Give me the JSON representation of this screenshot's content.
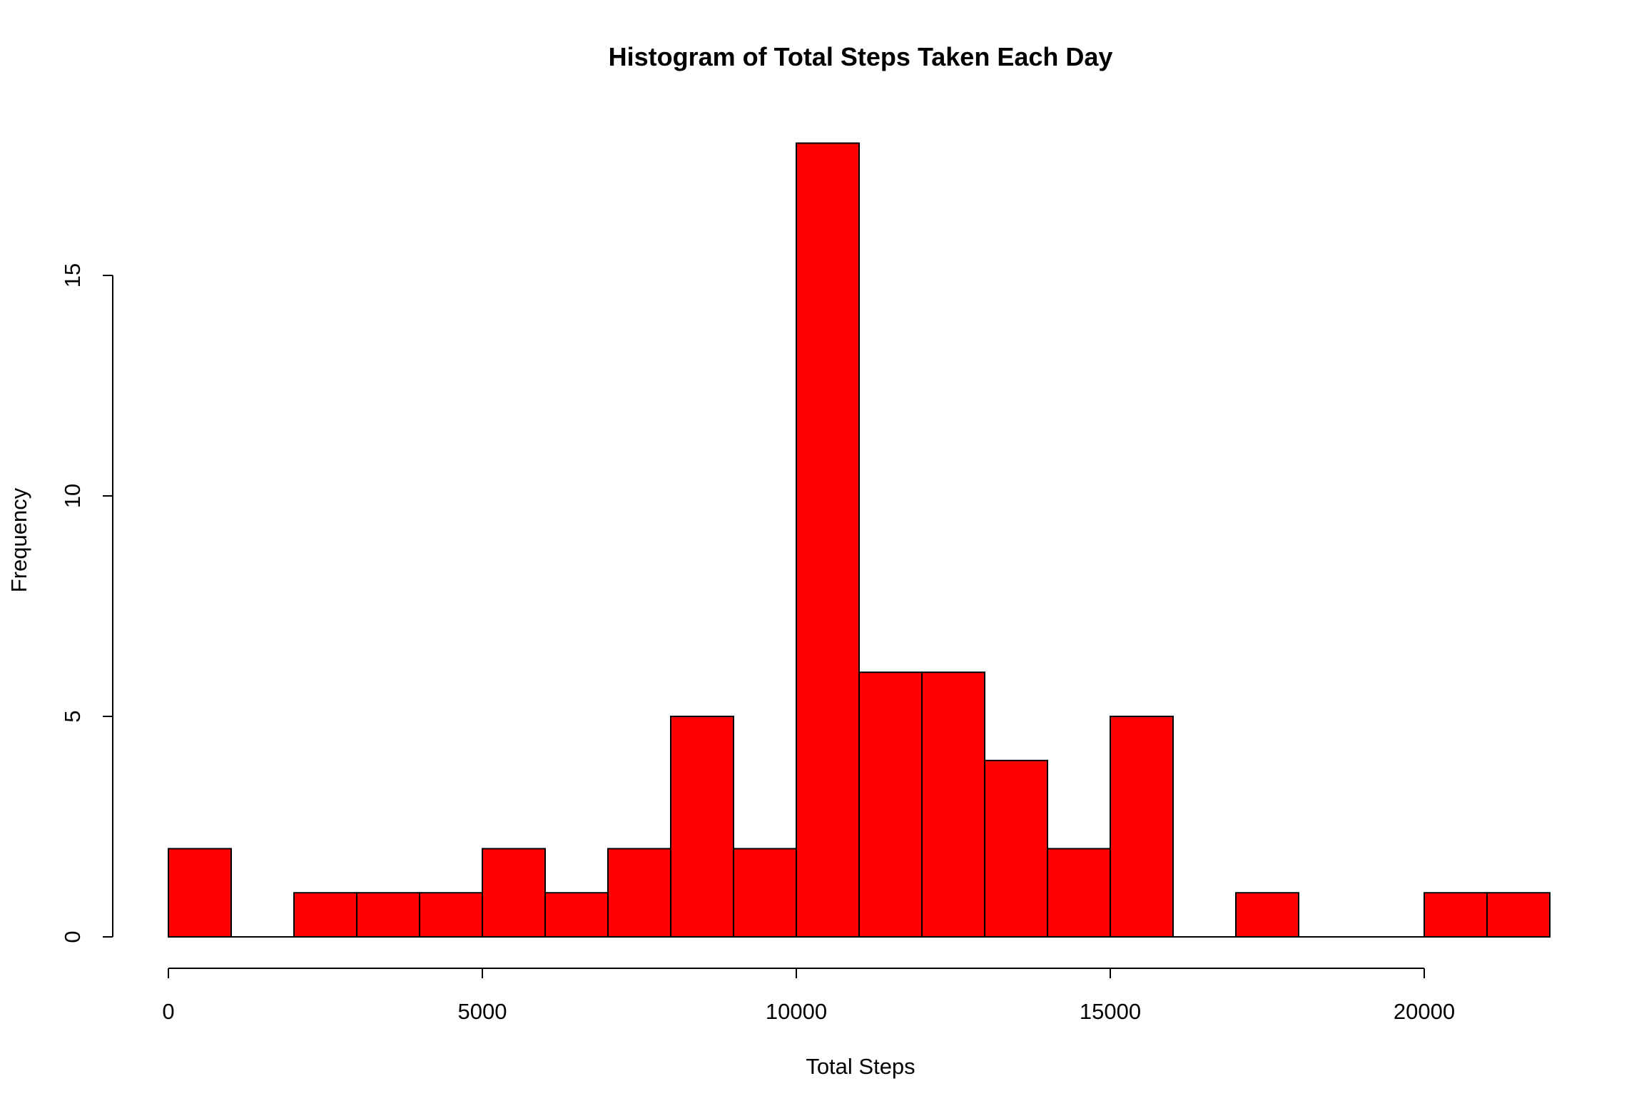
{
  "chart_data": {
    "type": "bar",
    "title": "Histogram of Total Steps Taken Each Day",
    "xlabel": "Total Steps",
    "ylabel": "Frequency",
    "bin_width": 1000,
    "bins": [
      {
        "start": 0,
        "end": 1000,
        "count": 2
      },
      {
        "start": 1000,
        "end": 2000,
        "count": 0
      },
      {
        "start": 2000,
        "end": 3000,
        "count": 1
      },
      {
        "start": 3000,
        "end": 4000,
        "count": 1
      },
      {
        "start": 4000,
        "end": 5000,
        "count": 1
      },
      {
        "start": 5000,
        "end": 6000,
        "count": 2
      },
      {
        "start": 6000,
        "end": 7000,
        "count": 1
      },
      {
        "start": 7000,
        "end": 8000,
        "count": 2
      },
      {
        "start": 8000,
        "end": 9000,
        "count": 5
      },
      {
        "start": 9000,
        "end": 10000,
        "count": 2
      },
      {
        "start": 10000,
        "end": 11000,
        "count": 18
      },
      {
        "start": 11000,
        "end": 12000,
        "count": 6
      },
      {
        "start": 12000,
        "end": 13000,
        "count": 6
      },
      {
        "start": 13000,
        "end": 14000,
        "count": 4
      },
      {
        "start": 14000,
        "end": 15000,
        "count": 2
      },
      {
        "start": 15000,
        "end": 16000,
        "count": 5
      },
      {
        "start": 16000,
        "end": 17000,
        "count": 0
      },
      {
        "start": 17000,
        "end": 18000,
        "count": 1
      },
      {
        "start": 18000,
        "end": 19000,
        "count": 0
      },
      {
        "start": 19000,
        "end": 20000,
        "count": 0
      },
      {
        "start": 20000,
        "end": 21000,
        "count": 1
      },
      {
        "start": 21000,
        "end": 22000,
        "count": 1
      }
    ],
    "xlim": [
      0,
      22000
    ],
    "ylim": [
      0,
      18
    ],
    "x_ticks": [
      0,
      5000,
      10000,
      15000,
      20000
    ],
    "y_ticks": [
      0,
      5,
      10,
      15
    ],
    "bar_color": "#ff0000",
    "grid": false,
    "legend": "none"
  }
}
